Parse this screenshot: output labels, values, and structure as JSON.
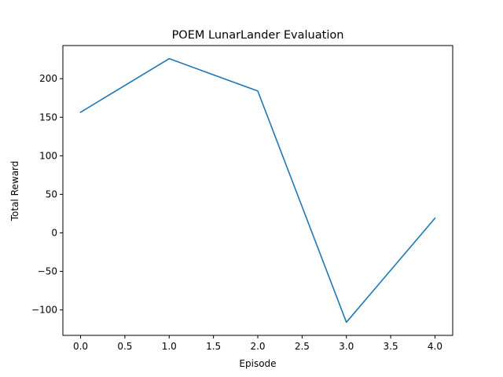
{
  "chart_data": {
    "type": "line",
    "title": "POEM LunarLander Evaluation",
    "xlabel": "Episode",
    "ylabel": "Total Reward",
    "x": [
      0,
      1,
      2,
      3,
      4
    ],
    "series": [
      {
        "values": [
          156.5,
          226,
          184,
          -116,
          19
        ],
        "color": "#1f77b4"
      }
    ],
    "xlim": [
      -0.2,
      4.2
    ],
    "ylim": [
      -133,
      243
    ],
    "xticks": [
      0,
      0.5,
      1,
      1.5,
      2,
      2.5,
      3,
      3.5,
      4
    ],
    "xtick_labels": [
      "0.0",
      "0.5",
      "1.0",
      "1.5",
      "2.0",
      "2.5",
      "3.0",
      "3.5",
      "4.0"
    ],
    "yticks": [
      -100,
      -50,
      0,
      50,
      100,
      150,
      200
    ],
    "ytick_labels": [
      "−100",
      "−50",
      "0",
      "50",
      "100",
      "150",
      "200"
    ],
    "grid": false,
    "legend": false
  }
}
